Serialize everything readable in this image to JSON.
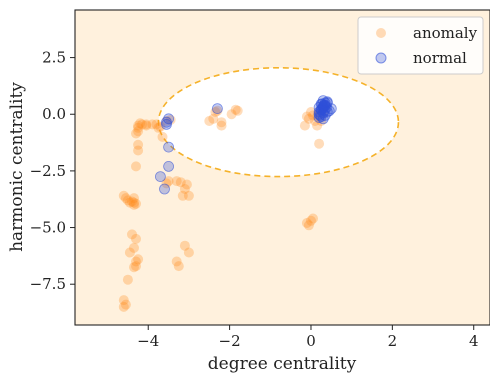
{
  "chart_data": {
    "type": "scatter",
    "title": "",
    "xlabel": "degree centrality",
    "ylabel": "harmonic centrality",
    "xlim": [
      -5.8,
      4.4
    ],
    "ylim": [
      -9.3,
      4.6
    ],
    "xticks": [
      -4,
      -2,
      0,
      2,
      4
    ],
    "yticks": [
      2.5,
      0.0,
      -2.5,
      -5.0,
      -7.5
    ],
    "xtick_labels": [
      "−4",
      "−2",
      "0",
      "2",
      "4"
    ],
    "ytick_labels": [
      "2.5",
      "0.0",
      "−2.5",
      "−5.0",
      "−7.5"
    ],
    "grid": false,
    "legend_position": "top-right",
    "background_color": "#fff1dd",
    "decision_ellipse": {
      "center": [
        -0.8,
        -0.35
      ],
      "x_radius": 2.95,
      "y_radius": 2.4,
      "color": "#f5b22a",
      "linestyle": "dashed",
      "fill": "#ffffff"
    },
    "series": [
      {
        "name": "anomaly",
        "color": "#ff8c1a",
        "x": [
          -4.6,
          -4.55,
          -4.6,
          -4.5,
          -4.45,
          -4.35,
          -4.4,
          -4.3,
          -4.35,
          -4.35,
          -4.4,
          -4.3,
          -4.35,
          -4.25,
          -4.3,
          -4.3,
          -4.35,
          -4.3,
          -4.25,
          -4.25,
          -4.6,
          -4.55,
          -4.5,
          -4.45,
          -4.3,
          -4.25,
          -4.25,
          -4.2,
          -4.25,
          -4.15,
          -4.05,
          -4.05,
          -3.9,
          -3.8,
          -3.75,
          -3.7,
          -3.65,
          -3.55,
          -3.45,
          -3.55,
          -3.5,
          -3.3,
          -3.2,
          -3.1,
          -3.15,
          -3.05,
          -3.1,
          -3.0,
          -3.3,
          -3.25,
          -3.0,
          -2.5,
          -2.4,
          -2.35,
          -2.3,
          -2.2,
          -2.2,
          -1.95,
          -1.85,
          -1.8,
          -0.15,
          -0.1,
          -0.1,
          -0.05,
          0.0,
          0.05,
          0.1,
          0.15,
          0.15,
          0.2,
          0.25,
          0.3,
          0.2,
          0.0,
          -0.05,
          0.05
        ],
        "y": [
          -8.2,
          -8.4,
          -8.5,
          -7.3,
          -6.1,
          -5.9,
          -5.3,
          -5.5,
          -4.0,
          -3.7,
          -3.85,
          -3.95,
          -3.9,
          -6.4,
          -6.5,
          -6.7,
          -6.75,
          -2.3,
          -1.6,
          -1.35,
          -3.6,
          -3.7,
          -3.8,
          -3.9,
          -0.85,
          -0.6,
          -0.75,
          -0.4,
          -0.5,
          -0.45,
          -0.45,
          -0.5,
          -0.45,
          -0.45,
          -0.6,
          -0.55,
          -1.0,
          -0.3,
          -0.25,
          -3.05,
          -2.95,
          -2.95,
          -3.0,
          -3.3,
          -3.6,
          -3.1,
          -5.8,
          -6.1,
          -6.5,
          -6.7,
          -3.6,
          -0.3,
          -0.2,
          0.1,
          0.15,
          -0.35,
          -0.5,
          0.0,
          0.2,
          0.15,
          -0.5,
          -0.1,
          -4.8,
          -4.9,
          -4.7,
          -0.05,
          -0.3,
          -0.5,
          -0.1,
          0.1,
          -0.3,
          0.05,
          -1.3,
          0.1,
          -0.2,
          -4.6
        ],
        "opacity": 0.3
      },
      {
        "name": "normal",
        "color": "#3050d8",
        "x": [
          -3.5,
          -3.55,
          -3.55,
          -3.5,
          -3.5,
          -3.6,
          -3.7,
          -2.3,
          0.2,
          0.25,
          0.3,
          0.3,
          0.35,
          0.35,
          0.4,
          0.4,
          0.3,
          0.25,
          0.2,
          0.2,
          0.25,
          0.3,
          0.35,
          0.45,
          0.5,
          0.3,
          0.25,
          0.35,
          0.4,
          0.2,
          0.28,
          0.32,
          0.22,
          0.38,
          0.27,
          0.33
        ],
        "y": [
          -0.2,
          -0.35,
          -0.45,
          -1.45,
          -2.3,
          -3.3,
          -2.75,
          0.25,
          0.1,
          0.2,
          0.3,
          0.35,
          0.4,
          0.5,
          0.5,
          0.55,
          0.6,
          0.45,
          0.3,
          0.0,
          -0.1,
          -0.2,
          -0.05,
          0.15,
          0.25,
          0.05,
          0.2,
          0.35,
          0.1,
          -0.15,
          0.25,
          0.4,
          -0.05,
          0.3,
          0.45,
          0.15
        ],
        "opacity": 0.3
      }
    ]
  }
}
